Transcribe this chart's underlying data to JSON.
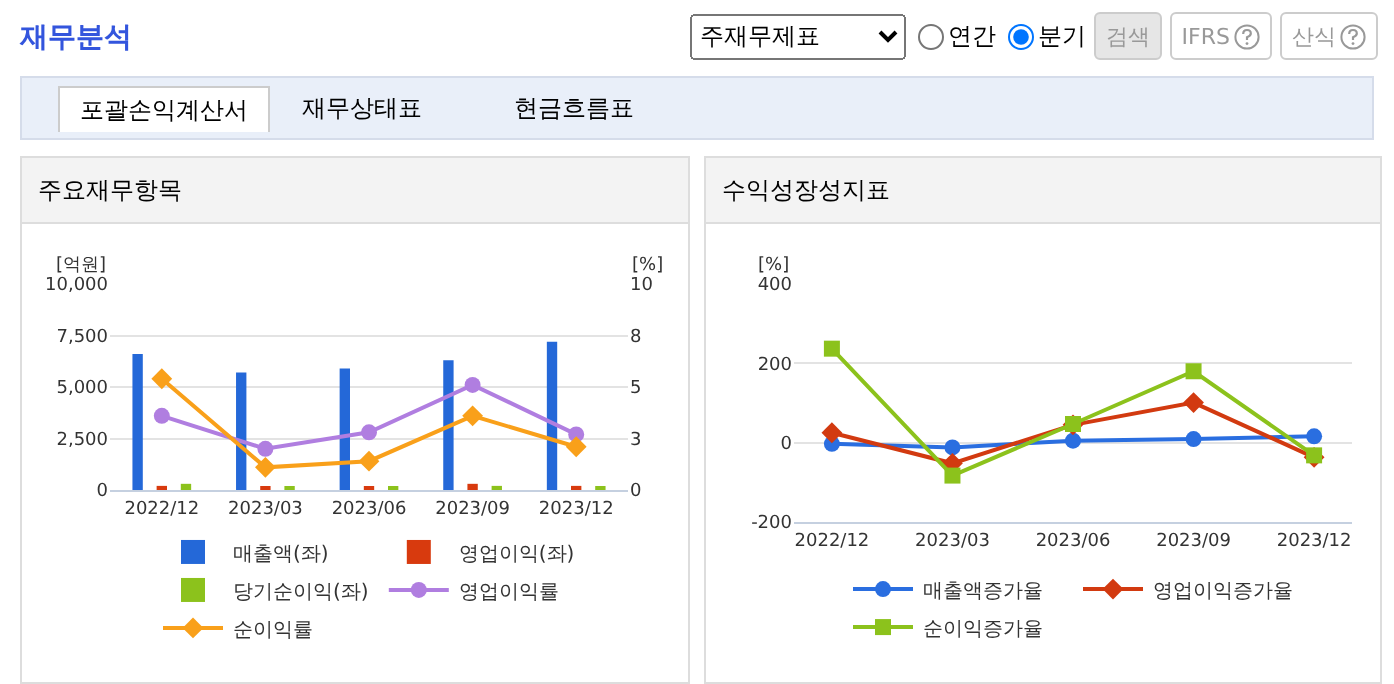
{
  "chart_data": [
    {
      "type": "other",
      "title": "재무분석",
      "annotations": [
        "주재무제표",
        "연간",
        "분기",
        "검색",
        "IFRS",
        "산식",
        "포괄손익계산서",
        "재무상태표",
        "현금흐름표"
      ]
    },
    {
      "type": "bar",
      "title": "주요재무항목",
      "ylabel": "[억원]",
      "y2label": "[%]",
      "categories": [
        "2022/12",
        "2023/03",
        "2023/06",
        "2023/09",
        "2023/12"
      ],
      "series": [
        {
          "name": "매출액(좌)",
          "color": "#2468d8",
          "values": [
            6600,
            5700,
            5900,
            6300,
            7200
          ]
        },
        {
          "name": "영업이익(좌)",
          "color": "#d83a0e",
          "values": [
            200,
            100,
            100,
            300,
            200
          ]
        },
        {
          "name": "당기순이익(좌)",
          "color": "#8cc21c",
          "values": [
            300,
            100,
            100,
            200,
            100
          ]
        },
        {
          "name": "영업이익률",
          "type": "line",
          "axis": "y2",
          "marker": "circle",
          "color": "#b07ee0",
          "values": [
            3.6,
            2,
            2.8,
            5.1,
            2.7
          ]
        },
        {
          "name": "순이익률",
          "type": "line",
          "axis": "y2",
          "marker": "diamond",
          "color": "#f9a01a",
          "values": [
            5.4,
            1.1,
            1.4,
            3.6,
            2.1
          ]
        }
      ],
      "ylim": [
        0,
        10000
      ],
      "yticks": [
        0,
        {
          "value": 2500,
          "label": "2,500"
        },
        {
          "value": 5000,
          "label": "5,000"
        },
        {
          "value": 7500,
          "label": "7,500"
        },
        {
          "value": 10000,
          "label": "10,000"
        }
      ],
      "y2lim": [
        0,
        10
      ],
      "y2ticks": [
        0,
        {
          "value": 2.5,
          "label": "3"
        },
        5,
        {
          "value": 7.5,
          "label": "8"
        },
        10
      ],
      "grid": "y",
      "legend": "bottom"
    },
    {
      "type": "line",
      "title": "수익성장성지표",
      "ylabel": "[%]",
      "categories": [
        "2022/12",
        "2023/03",
        "2023/06",
        "2023/09",
        "2023/12"
      ],
      "series": [
        {
          "name": "매출액증가율",
          "color": "#2a6ee0",
          "marker": "circle",
          "values": [
            -3,
            -12,
            5,
            9,
            16
          ]
        },
        {
          "name": "영업이익증가율",
          "color": "#d23a10",
          "marker": "diamond",
          "values": [
            25,
            -52,
            45,
            101,
            -37
          ]
        },
        {
          "name": "순이익증가율",
          "color": "#8cc21c",
          "marker": "square",
          "values": [
            237,
            -83,
            47,
            180,
            -32
          ]
        }
      ],
      "ylim": [
        -200,
        400
      ],
      "yticks": [
        -200,
        0,
        200,
        400
      ],
      "grid": "y",
      "legend": "bottom"
    }
  ]
}
